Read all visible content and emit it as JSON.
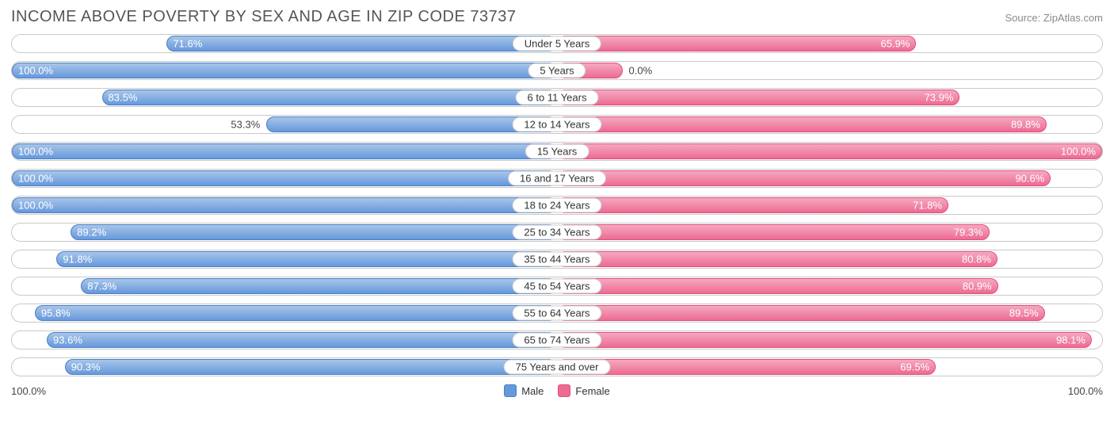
{
  "title": "INCOME ABOVE POVERTY BY SEX AND AGE IN ZIP CODE 73737",
  "source": "Source: ZipAtlas.com",
  "axis_extent_left": "100.0%",
  "axis_extent_right": "100.0%",
  "legend": {
    "male": "Male",
    "female": "Female"
  },
  "colors": {
    "male_fill": "#6699dc",
    "male_border": "#4a7fc7",
    "male_grad_light": "#a8c5e8",
    "female_fill": "#ed6b93",
    "female_border": "#e24f7d",
    "female_grad_light": "#f5a9c0",
    "track_border": "#c9c9c9",
    "text_inside": "#ffffff",
    "text_outside": "#444444"
  },
  "label_threshold": 60,
  "rows": [
    {
      "category": "Under 5 Years",
      "male": 71.6,
      "female": 65.9
    },
    {
      "category": "5 Years",
      "male": 100.0,
      "female": 0.0
    },
    {
      "category": "6 to 11 Years",
      "male": 83.5,
      "female": 73.9
    },
    {
      "category": "12 to 14 Years",
      "male": 53.3,
      "female": 89.8
    },
    {
      "category": "15 Years",
      "male": 100.0,
      "female": 100.0
    },
    {
      "category": "16 and 17 Years",
      "male": 100.0,
      "female": 90.6
    },
    {
      "category": "18 to 24 Years",
      "male": 100.0,
      "female": 71.8
    },
    {
      "category": "25 to 34 Years",
      "male": 89.2,
      "female": 79.3
    },
    {
      "category": "35 to 44 Years",
      "male": 91.8,
      "female": 80.8
    },
    {
      "category": "45 to 54 Years",
      "male": 87.3,
      "female": 80.9
    },
    {
      "category": "55 to 64 Years",
      "male": 95.8,
      "female": 89.5
    },
    {
      "category": "65 to 74 Years",
      "male": 93.6,
      "female": 98.1
    },
    {
      "category": "75 Years and over",
      "male": 90.3,
      "female": 69.5
    }
  ]
}
